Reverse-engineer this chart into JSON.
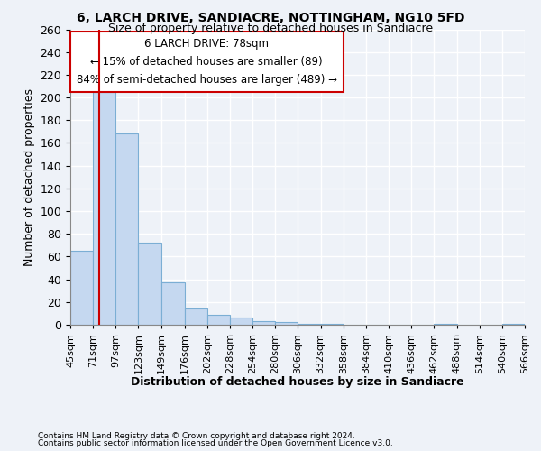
{
  "title1": "6, LARCH DRIVE, SANDIACRE, NOTTINGHAM, NG10 5FD",
  "title2": "Size of property relative to detached houses in Sandiacre",
  "xlabel": "Distribution of detached houses by size in Sandiacre",
  "ylabel": "Number of detached properties",
  "footnote1": "Contains HM Land Registry data © Crown copyright and database right 2024.",
  "footnote2": "Contains public sector information licensed under the Open Government Licence v3.0.",
  "bin_edges": [
    45,
    71,
    97,
    123,
    149,
    176,
    202,
    228,
    254,
    280,
    306,
    332,
    358,
    384,
    410,
    436,
    462,
    488,
    514,
    540,
    566
  ],
  "bar_heights": [
    65,
    205,
    168,
    72,
    37,
    14,
    9,
    6,
    3,
    2,
    1,
    1,
    0,
    0,
    0,
    0,
    1,
    0,
    0,
    1
  ],
  "bar_color": "#c5d8f0",
  "bar_edge_color": "#7baed4",
  "subject_size": 78,
  "annotation_title": "6 LARCH DRIVE: 78sqm",
  "annotation_line1": "← 15% of detached houses are smaller (89)",
  "annotation_line2": "84% of semi-detached houses are larger (489) →",
  "annotation_box_color": "#ffffff",
  "annotation_border_color": "#cc0000",
  "vline_color": "#cc0000",
  "ylim": [
    0,
    260
  ],
  "background_color": "#eef2f8",
  "grid_color": "#ffffff",
  "tick_label_fontsize": 8
}
